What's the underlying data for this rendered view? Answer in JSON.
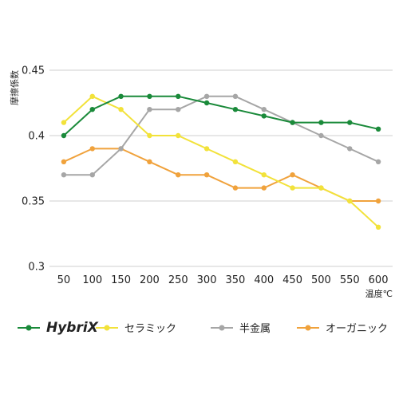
{
  "chart_data": {
    "type": "line",
    "xlabel": "温度℃",
    "ylabel": "摩擦係数",
    "categories": [
      "50",
      "100",
      "150",
      "200",
      "250",
      "300",
      "350",
      "400",
      "450",
      "500",
      "550",
      "600"
    ],
    "ylim": [
      0.3,
      0.45
    ],
    "yticks": [
      "0.45",
      "0.4",
      "0.35",
      "0.3"
    ],
    "grid": "horizontal",
    "legend_position": "bottom",
    "series": [
      {
        "name": "HybriX",
        "color": "#1a8a3a",
        "values": [
          0.4,
          0.42,
          0.43,
          0.43,
          0.43,
          0.425,
          0.42,
          0.415,
          0.41,
          0.41,
          0.41,
          0.405
        ]
      },
      {
        "name": "セラミック",
        "color": "#f2e23a",
        "values": [
          0.41,
          0.43,
          0.42,
          0.4,
          0.4,
          0.39,
          0.38,
          0.37,
          0.36,
          0.36,
          0.35,
          0.33
        ]
      },
      {
        "name": "半金属",
        "color": "#a6a6a6",
        "values": [
          0.37,
          0.37,
          0.39,
          0.42,
          0.42,
          0.43,
          0.43,
          0.42,
          0.41,
          0.4,
          0.39,
          0.38
        ]
      },
      {
        "name": "オーガニック",
        "color": "#f0a23c",
        "values": [
          0.38,
          0.39,
          0.39,
          0.38,
          0.37,
          0.37,
          0.36,
          0.36,
          0.37,
          0.36,
          0.35,
          0.35
        ]
      }
    ]
  }
}
